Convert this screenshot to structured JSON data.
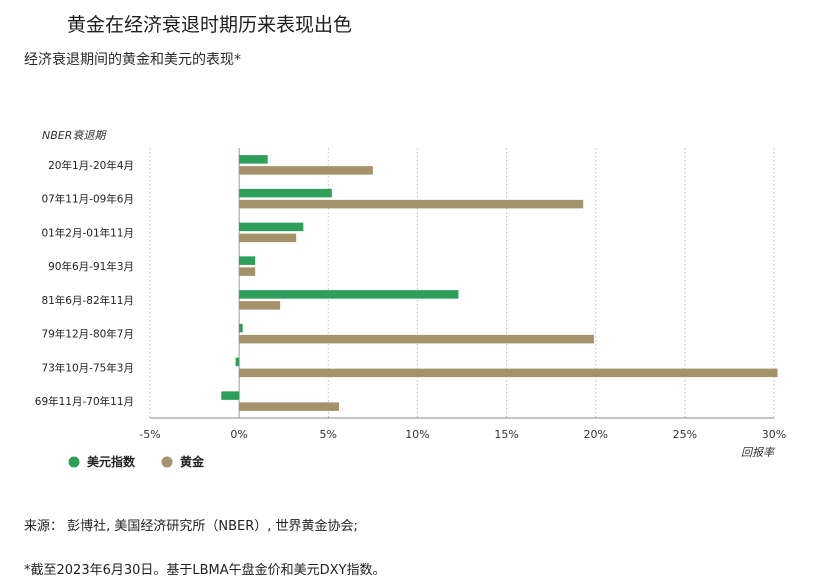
{
  "header": {
    "title": "黄金在经济衰退时期历来表现出色",
    "subtitle": "经济衰退期间的黄金和美元的表现*"
  },
  "chart_data": {
    "type": "bar",
    "orientation": "horizontal",
    "category_axis_label": "NBER衰退期",
    "xlabel": "回报率",
    "categories": [
      "20年1月-20年4月",
      "07年11月-09年6月",
      "01年2月-01年11月",
      "90年6月-91年3月",
      "81年6月-82年11月",
      "79年12月-80年7月",
      "73年10月-75年3月",
      "69年11月-70年11月"
    ],
    "series": [
      {
        "name": "美元指数",
        "color": "#2e9e5b",
        "values": [
          1.6,
          5.2,
          3.6,
          0.9,
          12.3,
          0.2,
          -0.2,
          -1.0
        ]
      },
      {
        "name": "黄金",
        "color": "#a4926a",
        "values": [
          7.5,
          19.3,
          3.2,
          0.9,
          2.3,
          19.9,
          30.2,
          5.6
        ]
      }
    ],
    "xlim": [
      -5,
      30
    ],
    "xticks": [
      "-5%",
      "0%",
      "5%",
      "10%",
      "15%",
      "20%",
      "25%",
      "30%"
    ],
    "grid": "vertical-dotted",
    "legend_position": "bottom-left"
  },
  "footer": {
    "source": "来源： 彭博社, 美国经济研究所（NBER）, 世界黄金协会;",
    "footnote": "*截至2023年6月30日。基于LBMA午盘金价和美元DXY指数。"
  }
}
